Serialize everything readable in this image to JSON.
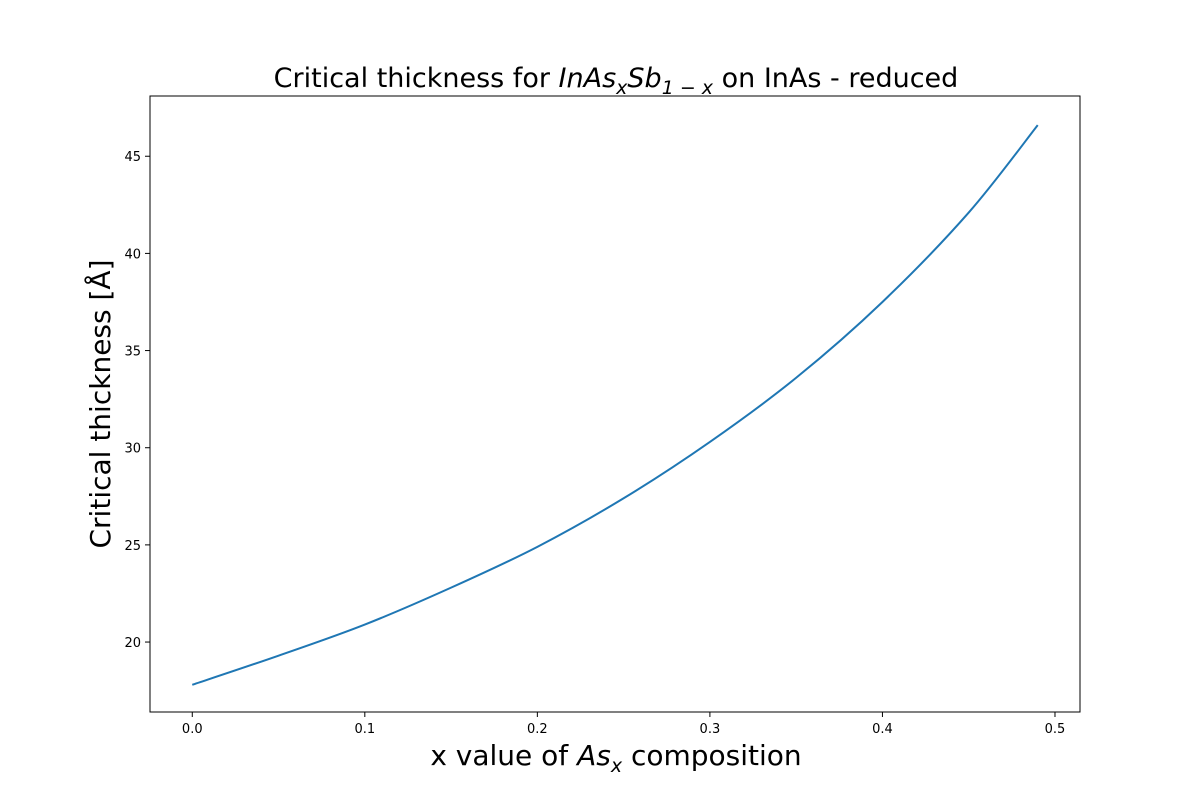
{
  "chart_data": {
    "type": "line",
    "title": {
      "prefix": "Critical thickness for ",
      "formula_main_1": "InAs",
      "formula_sub_1": "x",
      "formula_main_2": "Sb",
      "formula_sub_2": "1 − x",
      "suffix": " on InAs - reduced"
    },
    "xlabel": {
      "prefix": "x value of ",
      "formula_main": "As",
      "formula_sub": "x",
      "suffix": " composition"
    },
    "ylabel": "Critical thickness [Å]",
    "xlim": [
      -0.0245,
      0.5145
    ],
    "ylim": [
      16.4,
      48.1
    ],
    "x_ticks": [
      0.0,
      0.1,
      0.2,
      0.3,
      0.4,
      0.5
    ],
    "x_tick_labels": [
      "0.0",
      "0.1",
      "0.2",
      "0.3",
      "0.4",
      "0.5"
    ],
    "y_ticks": [
      20,
      25,
      30,
      35,
      40,
      45
    ],
    "y_tick_labels": [
      "20",
      "25",
      "30",
      "35",
      "40",
      "45"
    ],
    "grid": false,
    "series": [
      {
        "color": "#1f77b4",
        "x": [
          0.0,
          0.05,
          0.1,
          0.15,
          0.2,
          0.25,
          0.3,
          0.35,
          0.4,
          0.45,
          0.49
        ],
        "y": [
          17.8,
          19.3,
          20.9,
          22.8,
          24.9,
          27.4,
          30.3,
          33.6,
          37.5,
          42.1,
          46.6
        ]
      }
    ]
  }
}
